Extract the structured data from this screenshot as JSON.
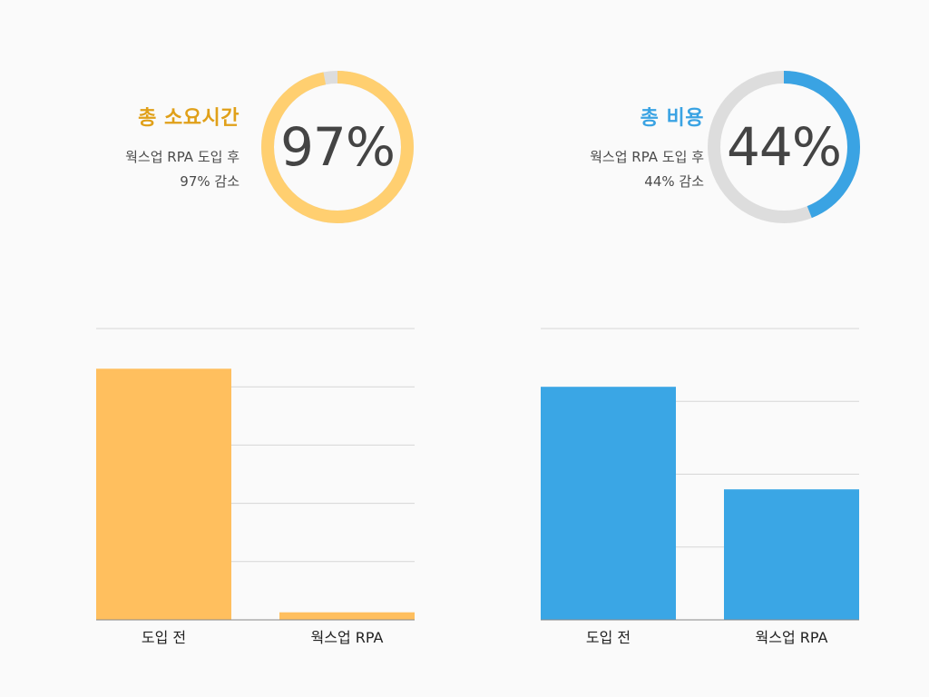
{
  "stats": [
    {
      "title": "총 소요시간",
      "desc_line1": "웍스업 RPA 도입 후",
      "desc_line2": "97% 감소",
      "percent_label": "97%",
      "percent": 97,
      "color": "#e0a019",
      "ring_color": "#ffcf70",
      "track_color": "#dddddd"
    },
    {
      "title": "총 비용",
      "desc_line1": "웍스업 RPA 도입 후",
      "desc_line2": "44% 감소",
      "percent_label": "44%",
      "percent": 44,
      "color": "#3aa3e3",
      "ring_color": "#3aa3e3",
      "track_color": "#dddddd"
    }
  ],
  "chart_data": [
    {
      "type": "bar",
      "categories": [
        "도입 전",
        "웍스업 RPA"
      ],
      "values": [
        100,
        3
      ],
      "ylim": [
        0,
        116
      ],
      "gridlines": [
        0,
        23.2,
        46.4,
        69.6,
        92.8,
        116
      ],
      "color": "#ffbf5e",
      "grid": true
    },
    {
      "type": "bar",
      "categories": [
        "도입 전",
        "웍스업 RPA"
      ],
      "values": [
        100,
        56
      ],
      "ylim": [
        0,
        125
      ],
      "gridlines": [
        0,
        31.25,
        62.5,
        93.75,
        125
      ],
      "color": "#3aa6e5",
      "grid": true
    }
  ]
}
